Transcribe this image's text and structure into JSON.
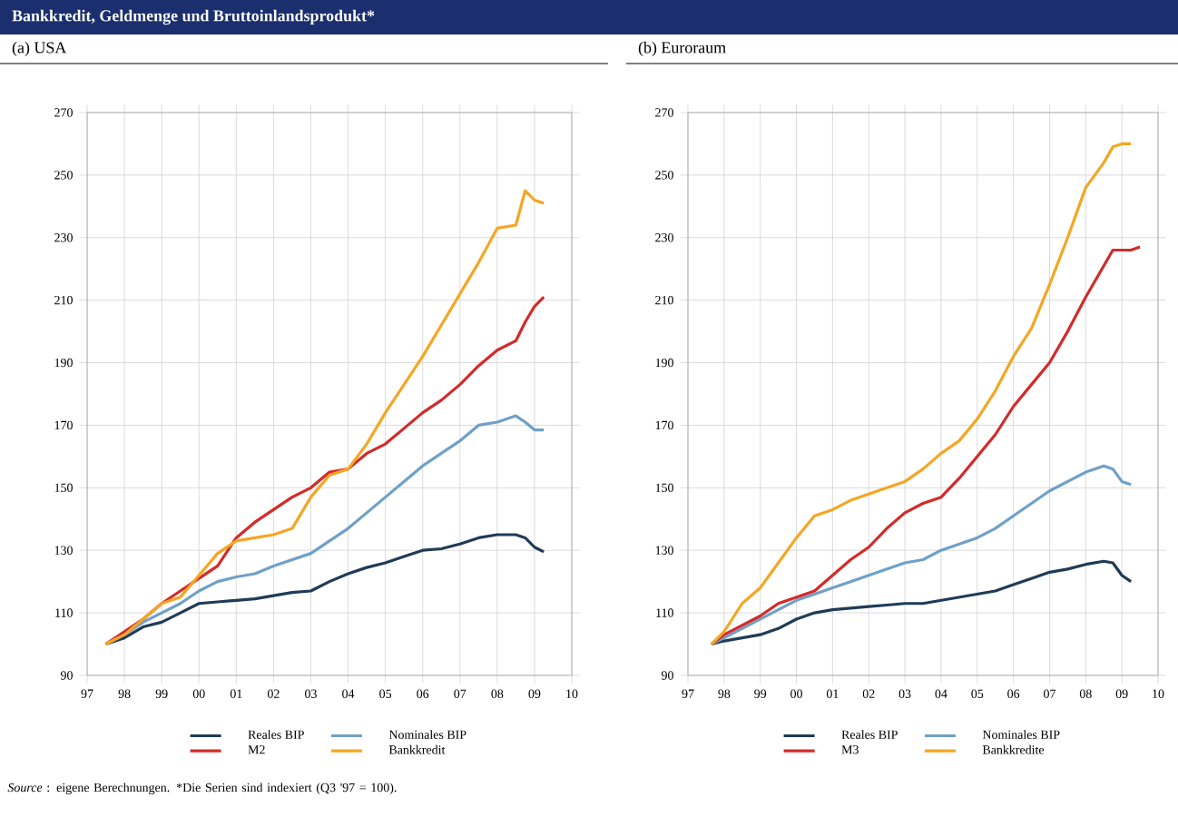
{
  "chart_data": [
    {
      "type": "line",
      "title": "Bankkredit, Geldmenge und Bruttoinlandsprodukt*",
      "subtitle": "(a) USA",
      "x": [
        1997.5,
        1998,
        1998.5,
        1999,
        1999.5,
        2000,
        2000.5,
        2001,
        2001.5,
        2002,
        2002.5,
        2003,
        2003.5,
        2004,
        2004.5,
        2005,
        2005.5,
        2006,
        2006.5,
        2007,
        2007.5,
        2008,
        2008.5,
        2008.75,
        2009,
        2009.25
      ],
      "series": [
        {
          "name": "Reales BIP",
          "color": "#1f3b57",
          "values": [
            100,
            102,
            105.5,
            107,
            110,
            113,
            113.5,
            114,
            114.5,
            115.5,
            116.5,
            117,
            120,
            122.5,
            124.5,
            126,
            128,
            130,
            130.5,
            132,
            134,
            135,
            135,
            134,
            131,
            129.5
          ]
        },
        {
          "name": "Nominales BIP",
          "color": "#6fa0c8",
          "values": [
            100,
            103,
            107,
            110,
            113,
            117,
            120,
            121.5,
            122.5,
            125,
            127,
            129,
            133,
            137,
            142,
            147,
            152,
            157,
            161,
            165,
            170,
            171,
            173,
            171,
            168.5,
            168.5
          ]
        },
        {
          "name": "M2",
          "color": "#d42a2a",
          "values": [
            100,
            104,
            108,
            113,
            117,
            121,
            125,
            134,
            139,
            143,
            147,
            150,
            155,
            156,
            161,
            164,
            169,
            174,
            178,
            183,
            189,
            194,
            197,
            203,
            208,
            211
          ]
        },
        {
          "name": "Bankkredit",
          "color": "#f5a623",
          "values": [
            100,
            103,
            108,
            113,
            115,
            122,
            129,
            133,
            134,
            135,
            137,
            147,
            154,
            156,
            164,
            174,
            183,
            192,
            202,
            212,
            222,
            233,
            234,
            245,
            242,
            241
          ]
        }
      ],
      "xlim": [
        1997,
        2010
      ],
      "xticks": [
        {
          "value": 1997,
          "label": "97"
        },
        {
          "value": 1998,
          "label": "98"
        },
        {
          "value": 1999,
          "label": "99"
        },
        {
          "value": 2000,
          "label": "00"
        },
        {
          "value": 2001,
          "label": "01"
        },
        {
          "value": 2002,
          "label": "02"
        },
        {
          "value": 2003,
          "label": "03"
        },
        {
          "value": 2004,
          "label": "04"
        },
        {
          "value": 2005,
          "label": "05"
        },
        {
          "value": 2006,
          "label": "06"
        },
        {
          "value": 2007,
          "label": "07"
        },
        {
          "value": 2008,
          "label": "08"
        },
        {
          "value": 2009,
          "label": "09"
        },
        {
          "value": 2010,
          "label": "10"
        }
      ],
      "ylim": [
        90,
        270
      ],
      "yticks": [
        90,
        110,
        130,
        150,
        170,
        190,
        210,
        230,
        250,
        270
      ],
      "grid": true,
      "legend": "bottom",
      "annotations": [
        "*Source* : eigene Berechnungen. *Die Serien sind indexiert (Q3 '97 = 100)."
      ]
    },
    {
      "type": "line",
      "subtitle": "(b) Euroraum",
      "x": [
        1997.65,
        1998,
        1998.5,
        1999,
        1999.5,
        2000,
        2000.5,
        2001,
        2001.5,
        2002,
        2002.5,
        2003,
        2003.5,
        2004,
        2004.5,
        2005,
        2005.5,
        2006,
        2006.5,
        2007,
        2007.5,
        2008,
        2008.5,
        2008.75,
        2009,
        2009.25
      ],
      "series": [
        {
          "name": "Reales BIP",
          "color": "#1f3b57",
          "values": [
            100,
            101,
            102,
            103,
            105,
            108,
            110,
            111,
            111.5,
            112,
            112.5,
            113,
            113,
            114,
            115,
            116,
            117,
            119,
            121,
            123,
            124,
            125.5,
            126.5,
            126,
            122,
            120
          ]
        },
        {
          "name": "Nominales BIP",
          "color": "#6fa0c8",
          "values": [
            100,
            102,
            105,
            108,
            111,
            114,
            116,
            118,
            120,
            122,
            124,
            126,
            127,
            130,
            132,
            134,
            137,
            141,
            145,
            149,
            152,
            155,
            157,
            156,
            152,
            151
          ]
        },
        {
          "name": "M3",
          "color": "#d42a2a",
          "x": [
            1997.65,
            1998,
            1998.5,
            1999,
            1999.5,
            2000,
            2000.5,
            2001,
            2001.5,
            2002,
            2002.5,
            2003,
            2003.5,
            2004,
            2004.5,
            2005,
            2005.5,
            2006,
            2006.5,
            2007,
            2007.5,
            2008,
            2008.5,
            2008.75,
            2009,
            2009.25,
            2009.5
          ],
          "values": [
            100,
            103,
            106,
            109,
            113,
            115,
            117,
            122,
            127,
            131,
            137,
            142,
            145,
            147,
            153,
            160,
            167,
            176,
            183,
            190,
            200,
            211,
            221,
            226,
            226,
            226,
            227
          ]
        },
        {
          "name": "Bankkredite",
          "color": "#f5a623",
          "values": [
            100,
            104,
            113,
            118,
            126,
            134,
            141,
            143,
            146,
            148,
            150,
            152,
            156,
            161,
            165,
            172,
            181,
            192,
            201,
            215,
            230,
            246,
            254,
            259,
            260,
            260
          ]
        }
      ],
      "xlim": [
        1997,
        2010
      ],
      "xticks": [
        {
          "value": 1997,
          "label": "97"
        },
        {
          "value": 1998,
          "label": "98"
        },
        {
          "value": 1999,
          "label": "99"
        },
        {
          "value": 2000,
          "label": "00"
        },
        {
          "value": 2001,
          "label": "01"
        },
        {
          "value": 2002,
          "label": "02"
        },
        {
          "value": 2003,
          "label": "03"
        },
        {
          "value": 2004,
          "label": "04"
        },
        {
          "value": 2005,
          "label": "05"
        },
        {
          "value": 2006,
          "label": "06"
        },
        {
          "value": 2007,
          "label": "07"
        },
        {
          "value": 2008,
          "label": "08"
        },
        {
          "value": 2009,
          "label": "09"
        },
        {
          "value": 2010,
          "label": "10"
        }
      ],
      "ylim": [
        90,
        270
      ],
      "yticks": [
        90,
        110,
        130,
        150,
        170,
        190,
        210,
        230,
        250,
        270
      ],
      "grid": true,
      "legend": "bottom"
    }
  ]
}
